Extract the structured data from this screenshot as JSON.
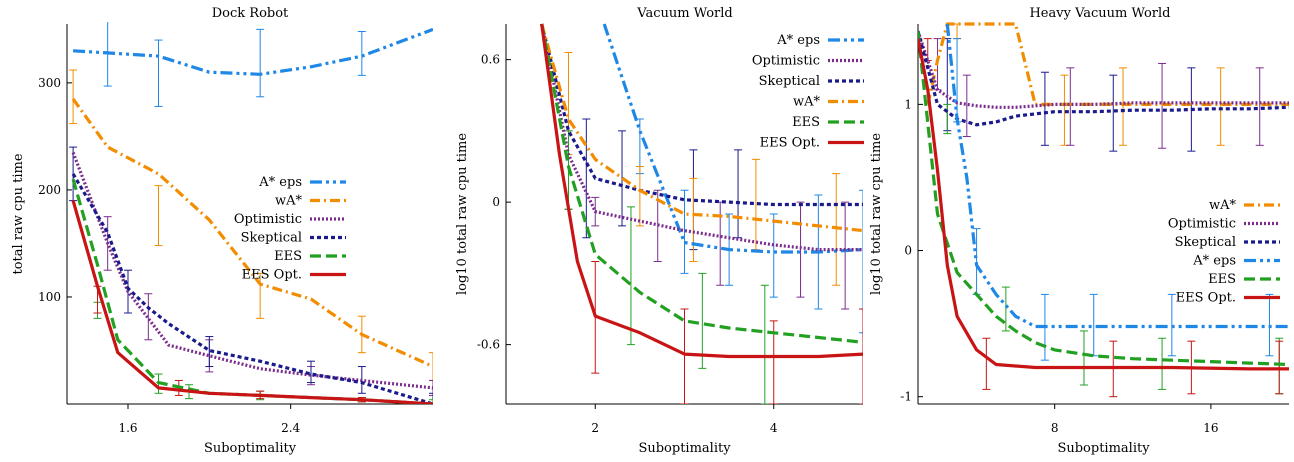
{
  "chart_data": [
    {
      "type": "line",
      "title": "Dock Robot",
      "xlabel": "Suboptimality",
      "ylabel": "total raw cpu time",
      "xlim": [
        1.3,
        3.1
      ],
      "ylim": [
        0,
        355
      ],
      "x_ticks": [
        1.6,
        2.4
      ],
      "x_tick_labels": [
        "1.6",
        "2.4"
      ],
      "y_ticks": [
        100,
        200,
        300
      ],
      "y_tick_labels": [
        "100",
        "200",
        "300"
      ],
      "legend_position": "right",
      "legend": [
        "A* eps",
        "wA*",
        "Optimistic",
        "Skeptical",
        "EES",
        "EES Opt."
      ],
      "series": [
        {
          "name": "A* eps",
          "color": "#1f87e5",
          "dash": "dashdotdot",
          "x": [
            1.33,
            1.5,
            1.75,
            2.0,
            2.25,
            2.5,
            2.75,
            3.1
          ],
          "y": [
            330,
            328,
            325,
            310,
            308,
            315,
            325,
            350
          ],
          "errbars": [
            [
              1.5,
              297,
              358
            ],
            [
              1.75,
              278,
              340
            ],
            [
              2.25,
              287,
              350
            ],
            [
              2.75,
              307,
              348
            ]
          ]
        },
        {
          "name": "wA*",
          "color": "#f28c00",
          "dash": "dashdot",
          "x": [
            1.33,
            1.5,
            1.75,
            2.0,
            2.25,
            2.5,
            2.75,
            3.1
          ],
          "y": [
            285,
            240,
            215,
            172,
            112,
            98,
            65,
            35
          ],
          "errbars": [
            [
              1.33,
              262,
              312
            ],
            [
              1.75,
              148,
              204
            ],
            [
              2.25,
              80,
              122
            ],
            [
              2.75,
              48,
              82
            ],
            [
              3.1,
              22,
              48
            ]
          ]
        },
        {
          "name": "Optimistic",
          "color": "#7b2d8e",
          "dash": "dotted",
          "x": [
            1.33,
            1.5,
            1.6,
            1.7,
            1.8,
            2.0,
            2.25,
            2.5,
            2.75,
            3.1
          ],
          "y": [
            235,
            150,
            105,
            80,
            55,
            45,
            33,
            27,
            22,
            15
          ],
          "errbars": [
            [
              1.5,
              125,
              175
            ],
            [
              1.7,
              60,
              103
            ],
            [
              2.0,
              30,
              60
            ],
            [
              2.5,
              18,
              35
            ],
            [
              3.1,
              8,
              22
            ]
          ]
        },
        {
          "name": "Skeptical",
          "color": "#1a1a8c",
          "dash": "densedash",
          "x": [
            1.33,
            1.5,
            1.6,
            1.7,
            1.8,
            2.0,
            2.25,
            2.5,
            2.75,
            3.1
          ],
          "y": [
            215,
            160,
            108,
            90,
            75,
            50,
            40,
            28,
            20,
            0
          ],
          "errbars": [
            [
              1.33,
              190,
              240
            ],
            [
              1.6,
              85,
              125
            ],
            [
              2.0,
              35,
              63
            ],
            [
              2.5,
              20,
              40
            ],
            [
              2.75,
              10,
              35
            ],
            [
              3.1,
              0,
              10
            ]
          ]
        },
        {
          "name": "EES",
          "color": "#22a022",
          "dash": "dashed",
          "x": [
            1.33,
            1.45,
            1.55,
            1.75,
            2.0,
            2.25,
            2.5,
            2.75,
            3.1
          ],
          "y": [
            210,
            130,
            60,
            20,
            10,
            8,
            6,
            4,
            0
          ],
          "errbars": [
            [
              1.45,
              80,
              95
            ],
            [
              1.75,
              10,
              28
            ],
            [
              1.9,
              5,
              18
            ],
            [
              2.25,
              4,
              12
            ],
            [
              2.75,
              2,
              6
            ],
            [
              3.1,
              0,
              4
            ]
          ]
        },
        {
          "name": "EES Opt.",
          "color": "#c81414",
          "dash": "solid",
          "x": [
            1.33,
            1.45,
            1.55,
            1.75,
            2.0,
            2.25,
            2.5,
            2.75,
            3.1
          ],
          "y": [
            190,
            110,
            48,
            15,
            10,
            8,
            6,
            4,
            0
          ],
          "errbars": [
            [
              1.45,
              85,
              110
            ],
            [
              1.85,
              8,
              22
            ],
            [
              2.25,
              5,
              12
            ],
            [
              2.75,
              2,
              6
            ]
          ]
        }
      ]
    },
    {
      "type": "line",
      "title": "Vacuum World",
      "xlabel": "Suboptimality",
      "ylabel": "log10 total raw cpu time",
      "xlim": [
        1.0,
        5.0
      ],
      "ylim": [
        -0.85,
        0.75
      ],
      "x_ticks": [
        2,
        4
      ],
      "x_tick_labels": [
        "2",
        "4"
      ],
      "y_ticks": [
        0.6,
        0,
        -0.6
      ],
      "y_tick_labels": [
        "0.6",
        "0",
        "-0.6"
      ],
      "legend_position": "top-right",
      "legend": [
        "A* eps",
        "Optimistic",
        "Skeptical",
        "wA*",
        "EES",
        "EES Opt."
      ],
      "series": [
        {
          "name": "A* eps",
          "color": "#1f87e5",
          "dash": "dashdotdot",
          "x": [
            2.1,
            2.5,
            3.0,
            3.5,
            4.0,
            4.5,
            5.0
          ],
          "y": [
            0.75,
            0.3,
            -0.17,
            -0.2,
            -0.21,
            -0.21,
            -0.2
          ],
          "errbars": [
            [
              2.5,
              0.12,
              0.35
            ],
            [
              3.0,
              -0.3,
              0.05
            ],
            [
              3.5,
              -0.35,
              -0.05
            ],
            [
              4.0,
              -0.4,
              -0.05
            ],
            [
              4.5,
              -0.45,
              0.03
            ],
            [
              5.0,
              -0.55,
              0.05
            ]
          ]
        },
        {
          "name": "Optimistic",
          "color": "#7b2d8e",
          "dash": "dotted",
          "x": [
            1.4,
            1.7,
            2.0,
            2.5,
            3.0,
            3.5,
            4.0,
            4.5,
            5.0
          ],
          "y": [
            0.75,
            0.2,
            -0.04,
            -0.08,
            -0.12,
            -0.15,
            -0.18,
            -0.2,
            -0.2
          ],
          "errbars": [
            [
              1.7,
              -0.03,
              0.3
            ],
            [
              2.0,
              -0.1,
              0.02
            ],
            [
              2.7,
              -0.25,
              0.05
            ],
            [
              3.4,
              -0.35,
              0.0
            ],
            [
              4.3,
              -0.4,
              0.0
            ],
            [
              4.8,
              -0.45,
              0.0
            ]
          ]
        },
        {
          "name": "Skeptical",
          "color": "#1a1a8c",
          "dash": "densedash",
          "x": [
            1.4,
            1.7,
            2.0,
            2.5,
            3.0,
            3.5,
            4.0,
            4.5,
            5.0
          ],
          "y": [
            0.75,
            0.3,
            0.1,
            0.05,
            0.01,
            0.0,
            -0.01,
            -0.01,
            -0.01
          ],
          "errbars": [
            [
              1.9,
              -0.15,
              0.35
            ],
            [
              2.3,
              -0.1,
              0.3
            ],
            [
              3.1,
              -0.2,
              0.22
            ],
            [
              3.6,
              -0.15,
              0.22
            ]
          ]
        },
        {
          "name": "wA*",
          "color": "#f28c00",
          "dash": "dashdot",
          "x": [
            1.4,
            1.7,
            2.0,
            2.5,
            3.0,
            3.5,
            4.0,
            4.5,
            5.0
          ],
          "y": [
            0.75,
            0.35,
            0.18,
            0.05,
            -0.05,
            -0.06,
            -0.08,
            -0.1,
            -0.12
          ],
          "errbars": [
            [
              1.7,
              0.2,
              0.63
            ],
            [
              2.5,
              -0.1,
              0.15
            ],
            [
              3.1,
              -0.25,
              0.1
            ],
            [
              3.8,
              -0.2,
              0.18
            ],
            [
              4.7,
              -0.35,
              0.12
            ]
          ]
        },
        {
          "name": "EES",
          "color": "#22a022",
          "dash": "dashed",
          "x": [
            1.4,
            1.7,
            2.0,
            2.5,
            3.0,
            3.5,
            4.0,
            4.5,
            5.0
          ],
          "y": [
            0.75,
            0.15,
            -0.22,
            -0.38,
            -0.5,
            -0.53,
            -0.55,
            -0.57,
            -0.59
          ],
          "errbars": [
            [
              1.7,
              -0.03,
              0.3
            ],
            [
              2.4,
              -0.6,
              -0.02
            ],
            [
              3.2,
              -0.7,
              -0.3
            ],
            [
              3.9,
              -0.85,
              -0.35
            ]
          ]
        },
        {
          "name": "EES Opt.",
          "color": "#c81414",
          "dash": "solid",
          "x": [
            1.4,
            1.6,
            1.8,
            2.0,
            2.5,
            3.0,
            3.5,
            4.0,
            4.5,
            5.0
          ],
          "y": [
            0.75,
            0.2,
            -0.25,
            -0.48,
            -0.55,
            -0.64,
            -0.65,
            -0.65,
            -0.65,
            -0.64
          ],
          "errbars": [
            [
              2.0,
              -0.72,
              -0.25
            ],
            [
              3.0,
              -0.85,
              -0.45
            ],
            [
              4.0,
              -0.85,
              -0.5
            ],
            [
              5.0,
              -0.85,
              -0.45
            ]
          ]
        }
      ]
    },
    {
      "type": "line",
      "title": "Heavy Vacuum World",
      "xlabel": "Suboptimality",
      "ylabel": "log10 total raw cpu time",
      "xlim": [
        1.0,
        20.0
      ],
      "ylim": [
        -1.05,
        1.55
      ],
      "x_ticks": [
        8,
        16
      ],
      "x_tick_labels": [
        "8",
        "16"
      ],
      "y_ticks": [
        1,
        0,
        -1
      ],
      "y_tick_labels": [
        "1",
        "0",
        "-1"
      ],
      "legend_position": "right",
      "legend": [
        "wA*",
        "Optimistic",
        "Skeptical",
        "A* eps",
        "EES",
        "EES Opt."
      ],
      "series": [
        {
          "name": "wA*",
          "color": "#f28c00",
          "dash": "dashdot",
          "x": [
            1.5,
            2.0,
            2.5,
            3.0,
            4.0,
            5.0,
            6.0,
            7.0,
            8.0,
            10.0,
            12.0,
            14.0,
            16.0,
            18.0,
            20.0
          ],
          "y": [
            1.0,
            1.3,
            1.55,
            1.55,
            1.55,
            1.55,
            1.55,
            1.0,
            1.0,
            1.0,
            1.0,
            1.0,
            1.0,
            1.0,
            1.0
          ],
          "errbars": [
            [
              3.0,
              1.45,
              1.55
            ],
            [
              8.5,
              0.72,
              1.2
            ],
            [
              11.5,
              0.72,
              1.25
            ],
            [
              16.5,
              0.72,
              1.25
            ]
          ]
        },
        {
          "name": "Optimistic",
          "color": "#7b2d8e",
          "dash": "dotted",
          "x": [
            1.0,
            2.0,
            3.0,
            4.0,
            5.0,
            6.0,
            8.0,
            10.0,
            12.0,
            14.0,
            16.0,
            18.0,
            20.0
          ],
          "y": [
            1.5,
            1.1,
            1.01,
            0.99,
            0.98,
            0.98,
            1.0,
            1.0,
            1.01,
            1.01,
            1.01,
            1.01,
            1.01
          ],
          "errbars": [
            [
              2.0,
              1.1,
              1.45
            ],
            [
              3.5,
              0.78,
              1.2
            ],
            [
              8.8,
              0.72,
              1.25
            ],
            [
              13.5,
              0.7,
              1.28
            ],
            [
              18.5,
              0.72,
              1.25
            ]
          ]
        },
        {
          "name": "Skeptical",
          "color": "#1a1a8c",
          "dash": "densedash",
          "x": [
            1.0,
            2.0,
            3.0,
            4.0,
            5.0,
            6.0,
            8.0,
            10.0,
            12.0,
            14.0,
            16.0,
            18.0,
            20.0
          ],
          "y": [
            1.5,
            1.0,
            0.9,
            0.86,
            0.88,
            0.92,
            0.95,
            0.95,
            0.96,
            0.96,
            0.97,
            0.97,
            0.98
          ],
          "errbars": [
            [
              2.5,
              0.82,
              1.45
            ],
            [
              7.5,
              0.72,
              1.22
            ],
            [
              11.0,
              0.68,
              1.2
            ],
            [
              15.0,
              0.68,
              1.25
            ]
          ]
        },
        {
          "name": "A* eps",
          "color": "#1f87e5",
          "dash": "dashdotdot",
          "x": [
            2.5,
            3.0,
            3.5,
            4.0,
            5.0,
            6.0,
            7.0,
            8.0,
            10.0,
            12.0,
            14.0,
            16.0,
            18.0,
            20.0
          ],
          "y": [
            1.55,
            0.9,
            0.5,
            -0.1,
            -0.3,
            -0.45,
            -0.52,
            -0.52,
            -0.52,
            -0.52,
            -0.52,
            -0.52,
            -0.52,
            -0.52
          ],
          "errbars": [
            [
              3.0,
              0.88,
              1.45
            ],
            [
              4.0,
              -0.3,
              0.15
            ],
            [
              7.5,
              -0.75,
              -0.3
            ],
            [
              10.0,
              -0.72,
              -0.3
            ],
            [
              14.0,
              -0.72,
              -0.3
            ],
            [
              19.0,
              -0.72,
              -0.3
            ]
          ]
        },
        {
          "name": "EES",
          "color": "#22a022",
          "dash": "dashed",
          "x": [
            1.0,
            2.0,
            3.0,
            4.0,
            5.0,
            6.0,
            7.0,
            8.0,
            10.0,
            12.0,
            14.0,
            16.0,
            18.0,
            20.0
          ],
          "y": [
            1.5,
            0.25,
            -0.15,
            -0.3,
            -0.45,
            -0.55,
            -0.63,
            -0.68,
            -0.72,
            -0.74,
            -0.75,
            -0.76,
            -0.77,
            -0.78
          ],
          "errbars": [
            [
              2.5,
              0.8,
              1.0
            ],
            [
              5.5,
              -0.55,
              -0.25
            ],
            [
              9.5,
              -0.92,
              -0.55
            ],
            [
              13.5,
              -0.95,
              -0.6
            ],
            [
              19.5,
              -0.98,
              -0.6
            ]
          ]
        },
        {
          "name": "EES Opt.",
          "color": "#c81414",
          "dash": "solid",
          "x": [
            1.0,
            1.5,
            2.0,
            2.5,
            3.0,
            4.0,
            5.0,
            7.0,
            8.0,
            10.0,
            14.0,
            18.0,
            20.0
          ],
          "y": [
            1.45,
            1.1,
            0.55,
            -0.1,
            -0.45,
            -0.68,
            -0.78,
            -0.8,
            -0.8,
            -0.8,
            -0.8,
            -0.81,
            -0.81
          ],
          "errbars": [
            [
              1.5,
              1.3,
              1.45
            ],
            [
              4.5,
              -0.95,
              -0.6
            ],
            [
              11.0,
              -1.0,
              -0.62
            ],
            [
              15.0,
              -0.98,
              -0.62
            ],
            [
              19.5,
              -0.98,
              -0.62
            ]
          ]
        }
      ]
    }
  ]
}
